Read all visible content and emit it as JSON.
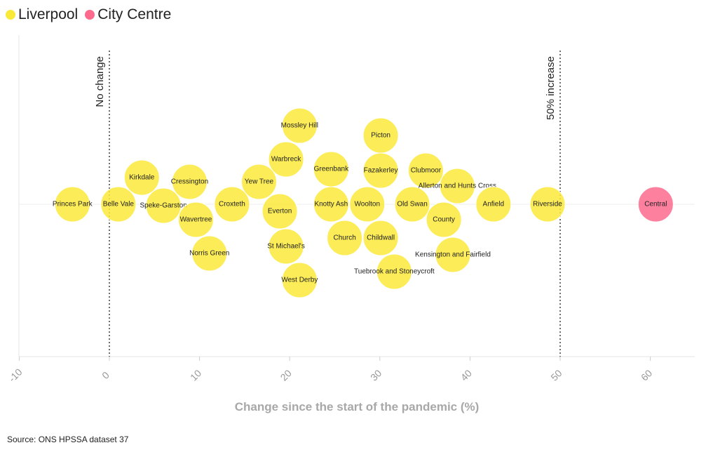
{
  "legend": [
    {
      "label": "Liverpool",
      "color": "#fbe93a"
    },
    {
      "label": "City Centre",
      "color": "#fd6a8e"
    }
  ],
  "source": "Source: ONS HPSSA dataset 37",
  "chart_data": {
    "type": "scatter",
    "subtype": "beeswarm",
    "xlabel": "Change since the start of the pandemic (%)",
    "xlim": [
      -10,
      65
    ],
    "xticks": [
      -10,
      0,
      10,
      20,
      30,
      40,
      50,
      60
    ],
    "reference_lines": [
      {
        "x": 0,
        "label": "No change"
      },
      {
        "x": 50,
        "label": "50% increase"
      }
    ],
    "series": [
      {
        "name": "Liverpool",
        "color": "#fbe93a",
        "points": [
          {
            "label": "Princes Park",
            "x": -4.1
          },
          {
            "label": "Belle Vale",
            "x": 1.0
          },
          {
            "label": "Kirkdale",
            "x": 3.6
          },
          {
            "label": "Speke-Garston",
            "x": 6.0
          },
          {
            "label": "Cressington",
            "x": 8.9
          },
          {
            "label": "Wavertree",
            "x": 9.6
          },
          {
            "label": "Norris Green",
            "x": 11.1
          },
          {
            "label": "Croxteth",
            "x": 13.6
          },
          {
            "label": "Yew Tree",
            "x": 16.6
          },
          {
            "label": "Everton",
            "x": 18.9
          },
          {
            "label": "St Michael's",
            "x": 19.6
          },
          {
            "label": "Warbreck",
            "x": 19.6
          },
          {
            "label": "West Derby",
            "x": 21.1
          },
          {
            "label": "Mossley Hill",
            "x": 21.1
          },
          {
            "label": "Knotty Ash",
            "x": 24.6
          },
          {
            "label": "Greenbank",
            "x": 24.6
          },
          {
            "label": "Church",
            "x": 26.1
          },
          {
            "label": "Woolton",
            "x": 28.6
          },
          {
            "label": "Fazakerley",
            "x": 30.1
          },
          {
            "label": "Childwall",
            "x": 30.1
          },
          {
            "label": "Picton",
            "x": 30.1
          },
          {
            "label": "Tuebrook and Stoneycroft",
            "x": 31.6
          },
          {
            "label": "Old Swan",
            "x": 33.6
          },
          {
            "label": "Clubmoor",
            "x": 35.1
          },
          {
            "label": "County",
            "x": 37.1
          },
          {
            "label": "Kensington and Fairfield",
            "x": 38.1
          },
          {
            "label": "Allerton and Hunts Cross",
            "x": 38.6
          },
          {
            "label": "Anfield",
            "x": 42.6
          },
          {
            "label": "Riverside",
            "x": 48.6
          }
        ]
      },
      {
        "name": "City Centre",
        "color": "#fd6a8e",
        "points": [
          {
            "label": "Central",
            "x": 60.6
          }
        ]
      }
    ]
  }
}
